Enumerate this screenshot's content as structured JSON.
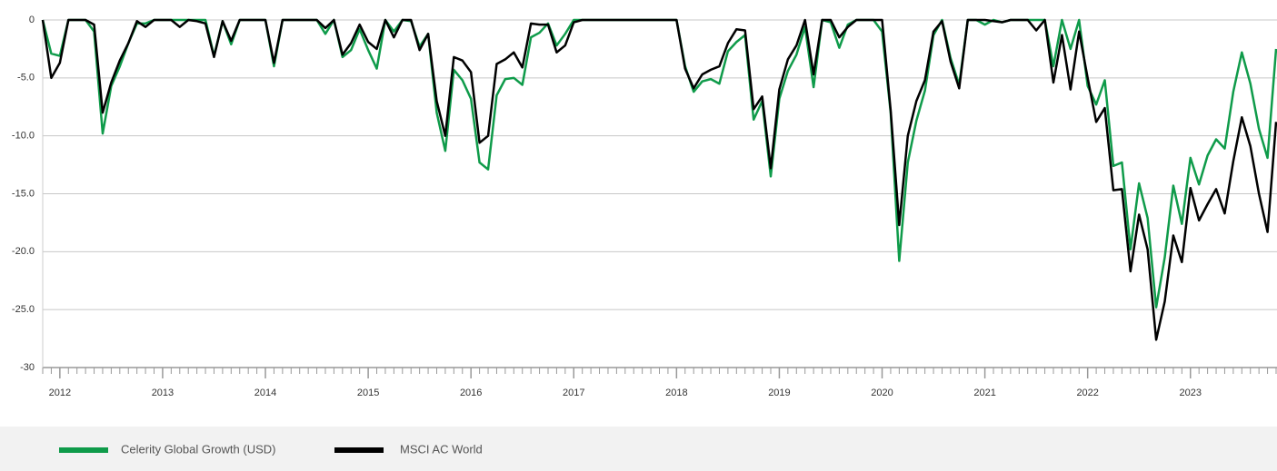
{
  "chart_data": {
    "type": "line",
    "categories": [
      null,
      null,
      "2012",
      null,
      null,
      null,
      null,
      null,
      null,
      null,
      null,
      null,
      null,
      null,
      "2013",
      null,
      null,
      null,
      null,
      null,
      null,
      null,
      null,
      null,
      null,
      null,
      "2014",
      null,
      null,
      null,
      null,
      null,
      null,
      null,
      null,
      null,
      null,
      null,
      "2015",
      null,
      null,
      null,
      null,
      null,
      null,
      null,
      null,
      null,
      null,
      null,
      "2016",
      null,
      null,
      null,
      null,
      null,
      null,
      null,
      null,
      null,
      null,
      null,
      "2017",
      null,
      null,
      null,
      null,
      null,
      null,
      null,
      null,
      null,
      null,
      null,
      "2018",
      null,
      null,
      null,
      null,
      null,
      null,
      null,
      null,
      null,
      null,
      null,
      "2019",
      null,
      null,
      null,
      null,
      null,
      null,
      null,
      null,
      null,
      null,
      null,
      "2020",
      null,
      null,
      null,
      null,
      null,
      null,
      null,
      null,
      null,
      null,
      null,
      "2021",
      null,
      null,
      null,
      null,
      null,
      null,
      null,
      null,
      null,
      null,
      null,
      "2022",
      null,
      null,
      null,
      null,
      null,
      null,
      null,
      null,
      null,
      null,
      null,
      "2023",
      null,
      null,
      null,
      null,
      null,
      null,
      null,
      null,
      null,
      null
    ],
    "series": [
      {
        "name": "Celerity Global Growth (USD)",
        "color": "#0f9b4a",
        "values": [
          0,
          -2.9,
          -3.1,
          0,
          0,
          0,
          -1.0,
          -9.8,
          -5.7,
          -4.0,
          -2.0,
          -0.3,
          -0.3,
          0,
          0,
          0,
          0,
          0,
          0,
          0,
          -3.1,
          -0.1,
          -2.1,
          0,
          0,
          0,
          0,
          -4.0,
          0,
          0,
          0,
          0,
          0,
          -1.2,
          0,
          -3.2,
          -2.6,
          -0.8,
          -2.6,
          -4.2,
          0,
          -1.0,
          0,
          -0.1,
          -2.3,
          -1.2,
          -8.0,
          -11.3,
          -4.3,
          -5.2,
          -6.8,
          -12.3,
          -12.9,
          -6.5,
          -5.1,
          -5.0,
          -5.6,
          -1.5,
          -1.1,
          -0.3,
          -2.2,
          -1.2,
          0,
          0,
          0,
          0,
          0,
          0,
          0,
          0,
          0,
          0,
          0,
          0,
          0,
          -4.0,
          -6.2,
          -5.3,
          -5.1,
          -5.5,
          -2.7,
          -1.9,
          -1.3,
          -8.6,
          -7.0,
          -13.5,
          -6.8,
          -4.4,
          -3.0,
          -0.6,
          -5.8,
          0,
          -0.2,
          -2.4,
          -0.4,
          0,
          0,
          0,
          -1.0,
          -8.0,
          -20.8,
          -12.3,
          -8.7,
          -6.1,
          -1.3,
          0,
          -3.3,
          -5.6,
          0,
          0,
          -0.4,
          0,
          -0.2,
          0,
          0,
          0,
          0,
          0,
          -4.0,
          0,
          -2.5,
          0,
          -5.7,
          -7.3,
          -5.2,
          -12.6,
          -12.3,
          -19.8,
          -14.1,
          -17.1,
          -24.8,
          -20.5,
          -14.3,
          -17.6,
          -11.9,
          -14.2,
          -11.7,
          -10.3,
          -11.1,
          -6.2,
          -2.8,
          -5.5,
          -9.4,
          -11.9,
          -2.5
        ]
      },
      {
        "name": "MSCI AC World",
        "color": "#000000",
        "values": [
          0,
          -5.0,
          -3.7,
          0,
          0,
          0,
          -0.4,
          -8.0,
          -5.4,
          -3.5,
          -2.0,
          -0.1,
          -0.6,
          0,
          0,
          0,
          -0.6,
          0,
          -0.1,
          -0.3,
          -3.2,
          -0.1,
          -1.8,
          0,
          0,
          0,
          0,
          -3.7,
          0,
          0,
          0,
          0,
          0,
          -0.7,
          0,
          -3.0,
          -2.0,
          -0.4,
          -1.9,
          -2.5,
          0,
          -1.5,
          0,
          0,
          -2.6,
          -1.2,
          -7.0,
          -10.0,
          -3.2,
          -3.5,
          -4.5,
          -10.6,
          -10.0,
          -3.8,
          -3.4,
          -2.8,
          -4.1,
          -0.3,
          -0.4,
          -0.4,
          -2.8,
          -2.2,
          -0.2,
          0,
          0,
          0,
          0,
          0,
          0,
          0,
          0,
          0,
          0,
          0,
          0,
          -4.2,
          -5.9,
          -4.7,
          -4.3,
          -4.0,
          -2.0,
          -0.8,
          -0.9,
          -7.7,
          -6.6,
          -12.8,
          -6.0,
          -3.4,
          -2.2,
          0,
          -4.7,
          0,
          0,
          -1.5,
          -0.6,
          0,
          0,
          0,
          0,
          -7.8,
          -17.7,
          -10.0,
          -7.0,
          -5.2,
          -1.0,
          -0.1,
          -3.6,
          -5.9,
          0,
          0,
          0,
          -0.1,
          -0.2,
          0,
          0,
          0,
          -0.9,
          0,
          -5.4,
          -1.3,
          -6.0,
          -1.0,
          -5.0,
          -8.8,
          -7.6,
          -14.7,
          -14.6,
          -21.7,
          -16.8,
          -19.8,
          -27.6,
          -24.3,
          -18.6,
          -20.9,
          -14.5,
          -17.3,
          -15.9,
          -14.6,
          -16.7,
          -12.2,
          -8.4,
          -10.9,
          -15.0,
          -18.3,
          -8.8
        ]
      }
    ],
    "ylim": [
      -30,
      0
    ],
    "yticks": [
      0,
      {
        "value": -5,
        "label": "-5.0"
      },
      {
        "value": -10,
        "label": "-10.0"
      },
      {
        "value": -15,
        "label": "-15.0"
      },
      {
        "value": -20,
        "label": "-20.0"
      },
      {
        "value": -25,
        "label": "-25.0"
      },
      -30
    ],
    "grid": true
  }
}
